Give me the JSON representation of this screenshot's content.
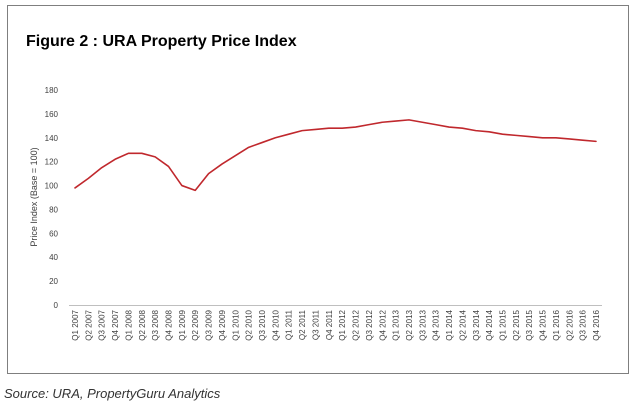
{
  "figure": {
    "title": "Figure 2 : URA Property Price Index",
    "source": "Source: URA, PropertyGuru Analytics",
    "line_color": "#c0282d"
  },
  "chart_data": {
    "type": "line",
    "title": "Figure 2 : URA Property Price Index",
    "xlabel": "",
    "ylabel": "Price Index (Base = 100)",
    "ylim": [
      0,
      180
    ],
    "yticks": [
      0,
      20,
      40,
      60,
      80,
      100,
      120,
      140,
      160,
      180
    ],
    "grid": false,
    "legend": "none",
    "categories": [
      "Q1 2007",
      "Q2 2007",
      "Q3 2007",
      "Q4 2007",
      "Q1 2008",
      "Q2 2008",
      "Q3 2008",
      "Q4 2008",
      "Q1 2009",
      "Q2 2009",
      "Q3 2009",
      "Q4 2009",
      "Q1 2010",
      "Q2 2010",
      "Q3 2010",
      "Q4 2010",
      "Q1 2011",
      "Q2 2011",
      "Q3 2011",
      "Q4 2011",
      "Q1 2012",
      "Q2 2012",
      "Q3 2012",
      "Q4 2012",
      "Q1 2013",
      "Q2 2013",
      "Q3 2013",
      "Q4 2013",
      "Q1 2014",
      "Q2 2014",
      "Q3 2014",
      "Q4 2014",
      "Q1 2015",
      "Q2 2015",
      "Q3 2015",
      "Q4 2015",
      "Q1 2016",
      "Q2 2016",
      "Q3 2016",
      "Q4 2016"
    ],
    "series": [
      {
        "values": [
          98,
          106,
          115,
          122,
          127,
          127,
          124,
          116,
          100,
          96,
          110,
          118,
          125,
          132,
          136,
          140,
          143,
          146,
          147,
          148,
          148,
          149,
          151,
          153,
          154,
          155,
          153,
          151,
          149,
          148,
          146,
          145,
          143,
          142,
          141,
          140,
          140,
          139,
          138,
          137
        ]
      }
    ]
  }
}
